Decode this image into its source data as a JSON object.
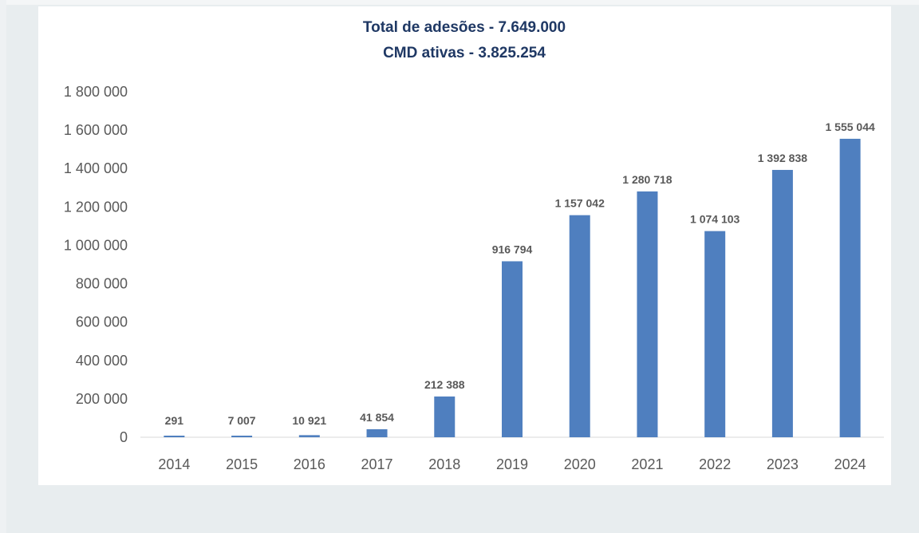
{
  "chart_data": {
    "type": "bar",
    "title_lines": [
      "Total de adesões - 7.649.000",
      "CMD ativas - 3.825.254"
    ],
    "categories": [
      "2014",
      "2015",
      "2016",
      "2017",
      "2018",
      "2019",
      "2020",
      "2021",
      "2022",
      "2023",
      "2024"
    ],
    "values": [
      291,
      7007,
      10921,
      41854,
      212388,
      916794,
      1157042,
      1280718,
      1074103,
      1392838,
      1555044
    ],
    "data_labels": [
      "291",
      "7 007",
      "10 921",
      "41 854",
      "212 388",
      "916 794",
      "1 157 042",
      "1 280 718",
      "1 074 103",
      "1 392 838",
      "1 555 044"
    ],
    "y_ticks": [
      0,
      200000,
      400000,
      600000,
      800000,
      1000000,
      1200000,
      1400000,
      1600000,
      1800000
    ],
    "y_tick_labels": [
      "0",
      "200 000",
      "400 000",
      "600 000",
      "800 000",
      "1 000 000",
      "1 200 000",
      "1 400 000",
      "1 600 000",
      "1 800 000"
    ],
    "ylim": [
      0,
      1800000
    ],
    "grid": false,
    "legend": "none",
    "bar_color": "#4f7fbf",
    "title_color": "#1f3864",
    "label_color": "#595959",
    "background": "#ffffff",
    "page_background": "#e8edef"
  }
}
